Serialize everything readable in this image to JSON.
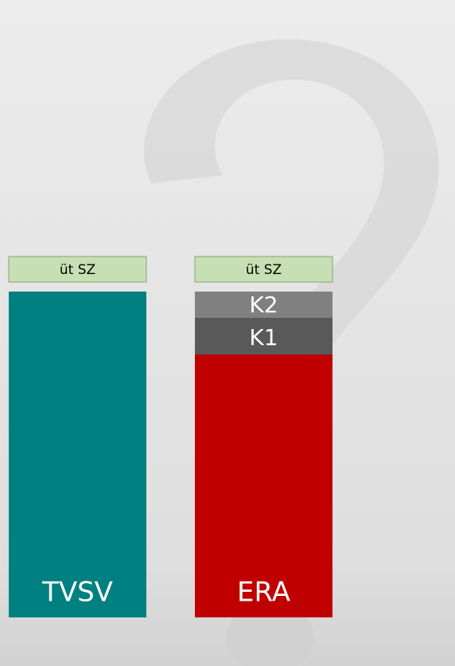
{
  "columns": [
    {
      "header": "üt SZ",
      "label": "TVSV"
    },
    {
      "header": "üt SZ",
      "label": "ERA",
      "segments": [
        "K2",
        "K1"
      ]
    }
  ]
}
